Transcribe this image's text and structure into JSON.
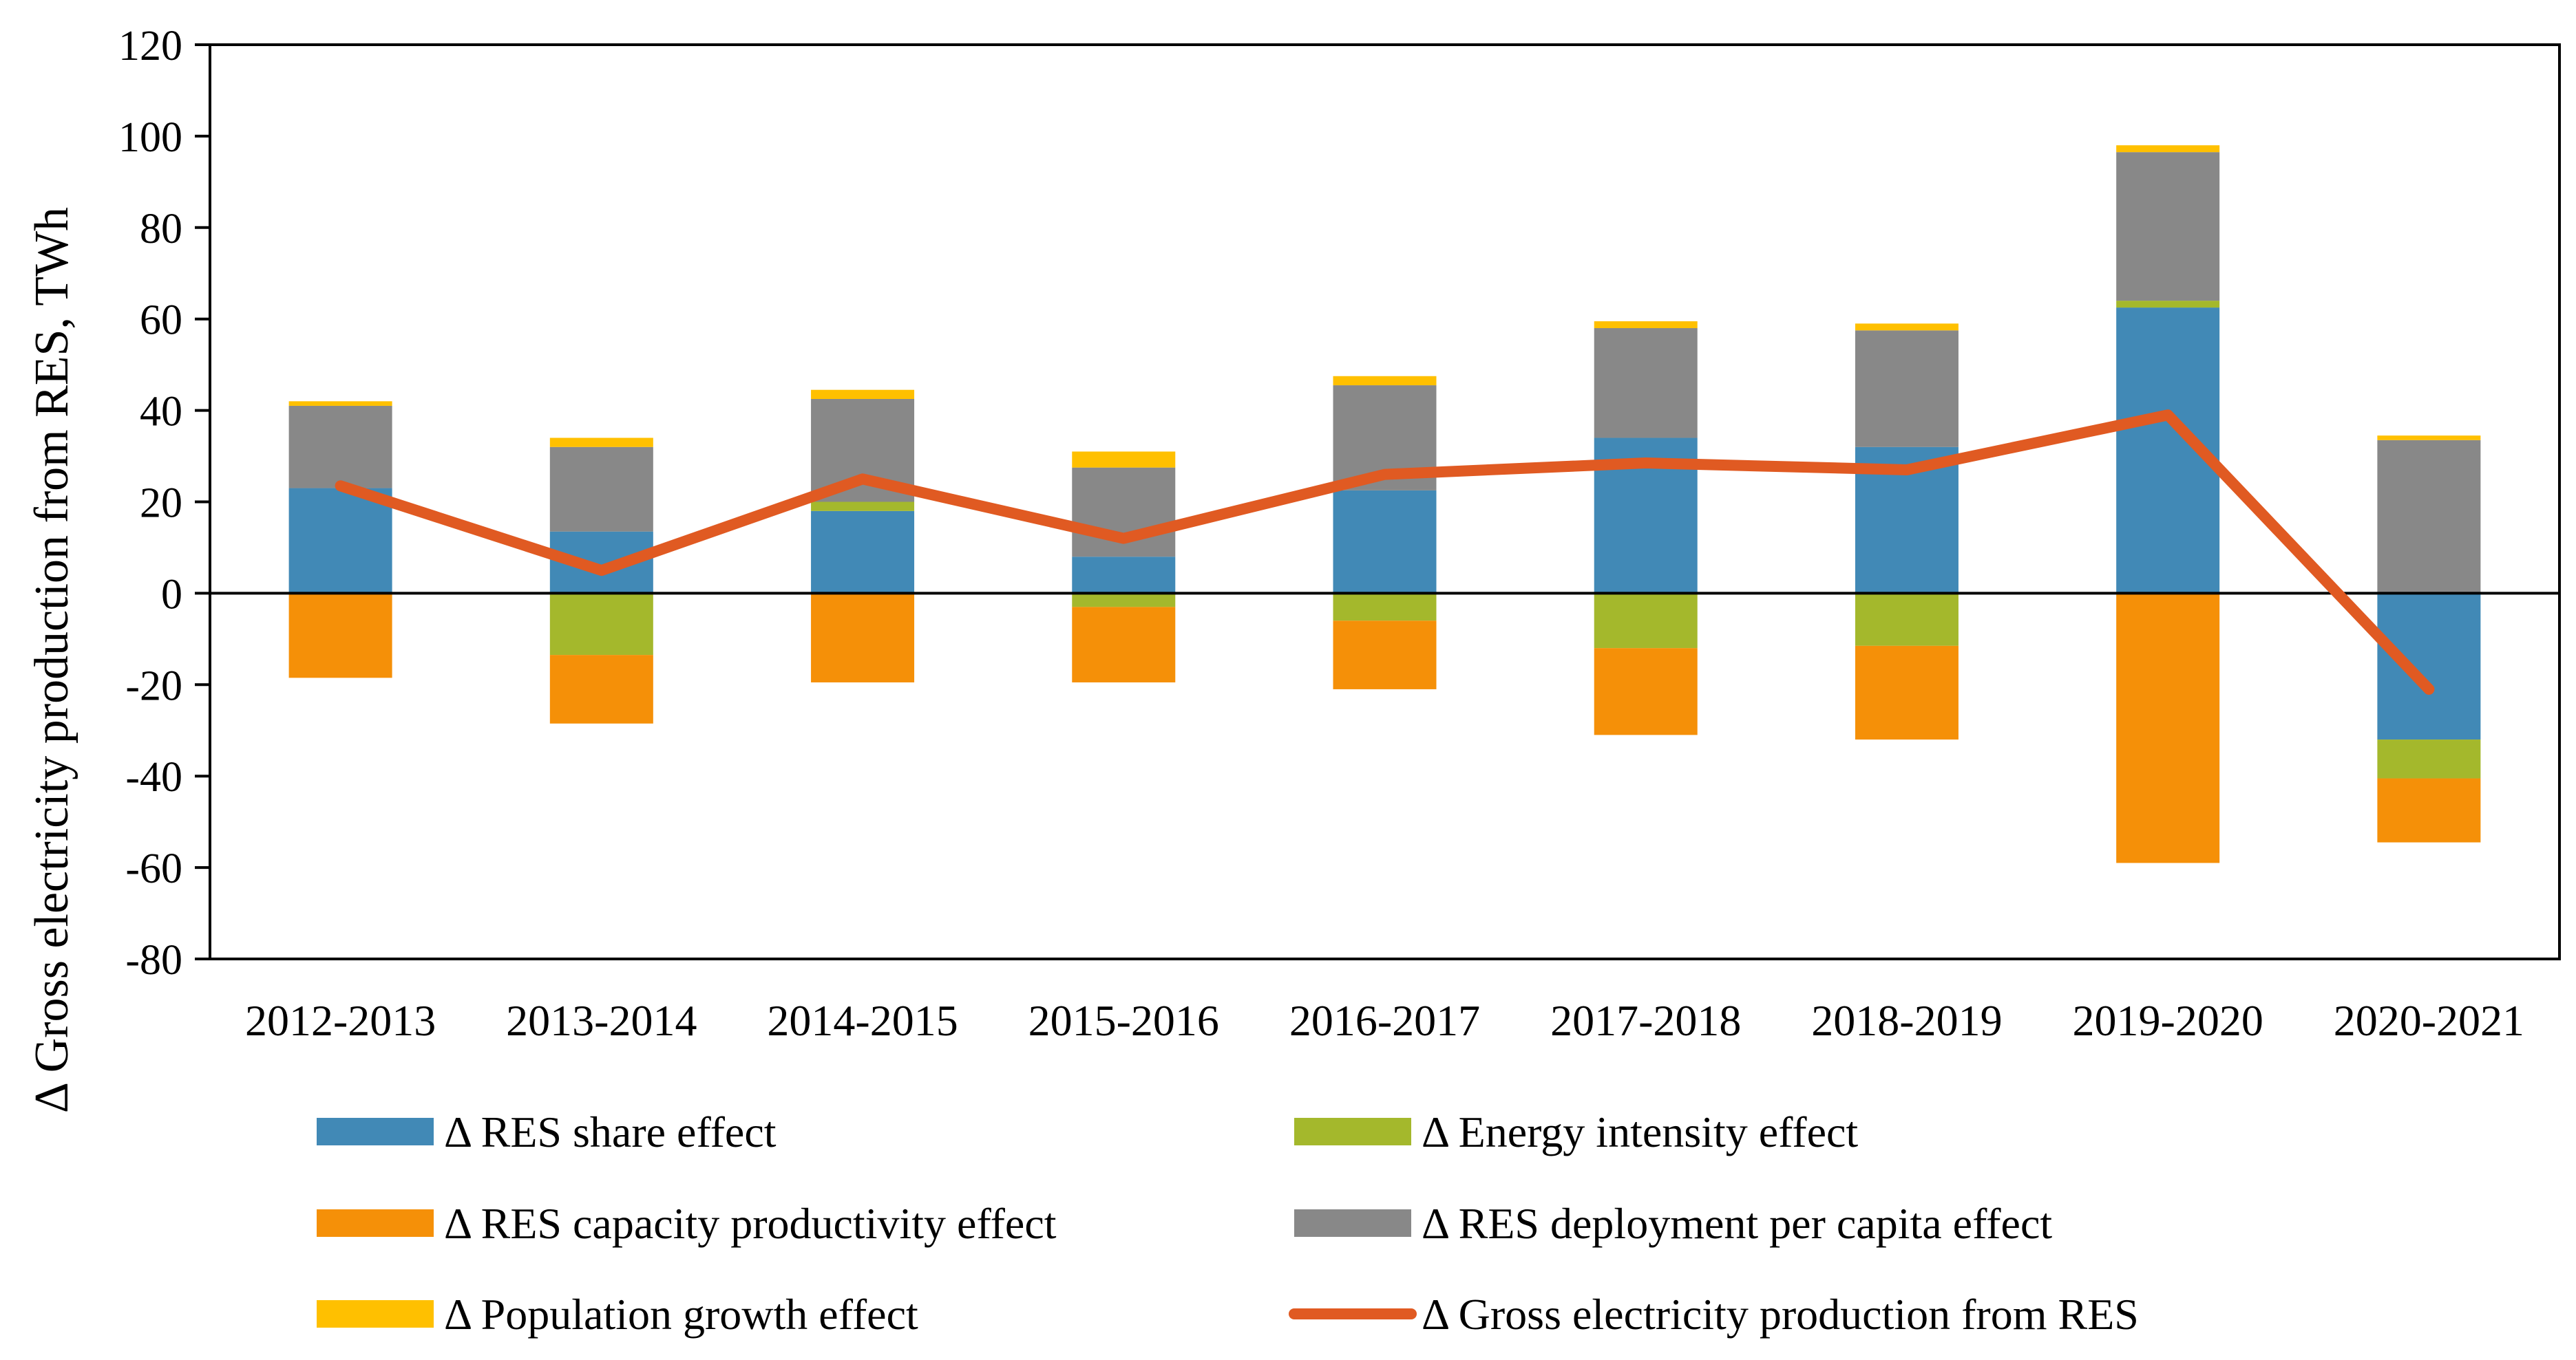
{
  "chart_data": {
    "type": "bar",
    "stacked": true,
    "title": "",
    "xlabel": "",
    "ylabel": "Δ Gross electricity production from RES, TWh",
    "ylim": [
      -80,
      120
    ],
    "yticks": [
      120,
      100,
      80,
      60,
      40,
      20,
      0,
      -20,
      -40,
      -60,
      -80
    ],
    "categories": [
      "2012-2013",
      "2013-2014",
      "2014-2015",
      "2015-2016",
      "2016-2017",
      "2017-2018",
      "2018-2019",
      "2019-2020",
      "2020-2021"
    ],
    "series": [
      {
        "name": "Δ RES share effect",
        "kind": "bar",
        "color": "#4189B6",
        "values": [
          23,
          13.5,
          18,
          8,
          22.5,
          34,
          32,
          62.5,
          -32
        ]
      },
      {
        "name": "Δ Energy intensity effect",
        "kind": "bar",
        "color": "#A4B82C",
        "values": [
          0,
          -13.5,
          2,
          -3,
          -6,
          -12,
          -11.5,
          1.5,
          -8.5
        ]
      },
      {
        "name": "Δ RES capacity productivity effect",
        "kind": "bar",
        "color": "#F59008",
        "values": [
          -18.5,
          -15,
          -19.5,
          -16.5,
          -15,
          -19,
          -20.5,
          -59,
          -14
        ]
      },
      {
        "name": "Δ RES deployment per capita effect",
        "kind": "bar",
        "color": "#888888",
        "values": [
          18,
          18.5,
          22.5,
          19.5,
          23,
          24,
          25.5,
          32.5,
          33.5
        ]
      },
      {
        "name": "Δ Population growth effect",
        "kind": "bar",
        "color": "#FFC000",
        "values": [
          1,
          2,
          2,
          3.5,
          2,
          1.5,
          1.5,
          1.5,
          1
        ]
      },
      {
        "name": "Δ Gross electricity production from RES",
        "kind": "line",
        "color": "#E05A22",
        "values": [
          23.5,
          5,
          25,
          12,
          26,
          28.5,
          27,
          39,
          -21
        ]
      }
    ],
    "legend_position": "bottom",
    "grid": false
  }
}
